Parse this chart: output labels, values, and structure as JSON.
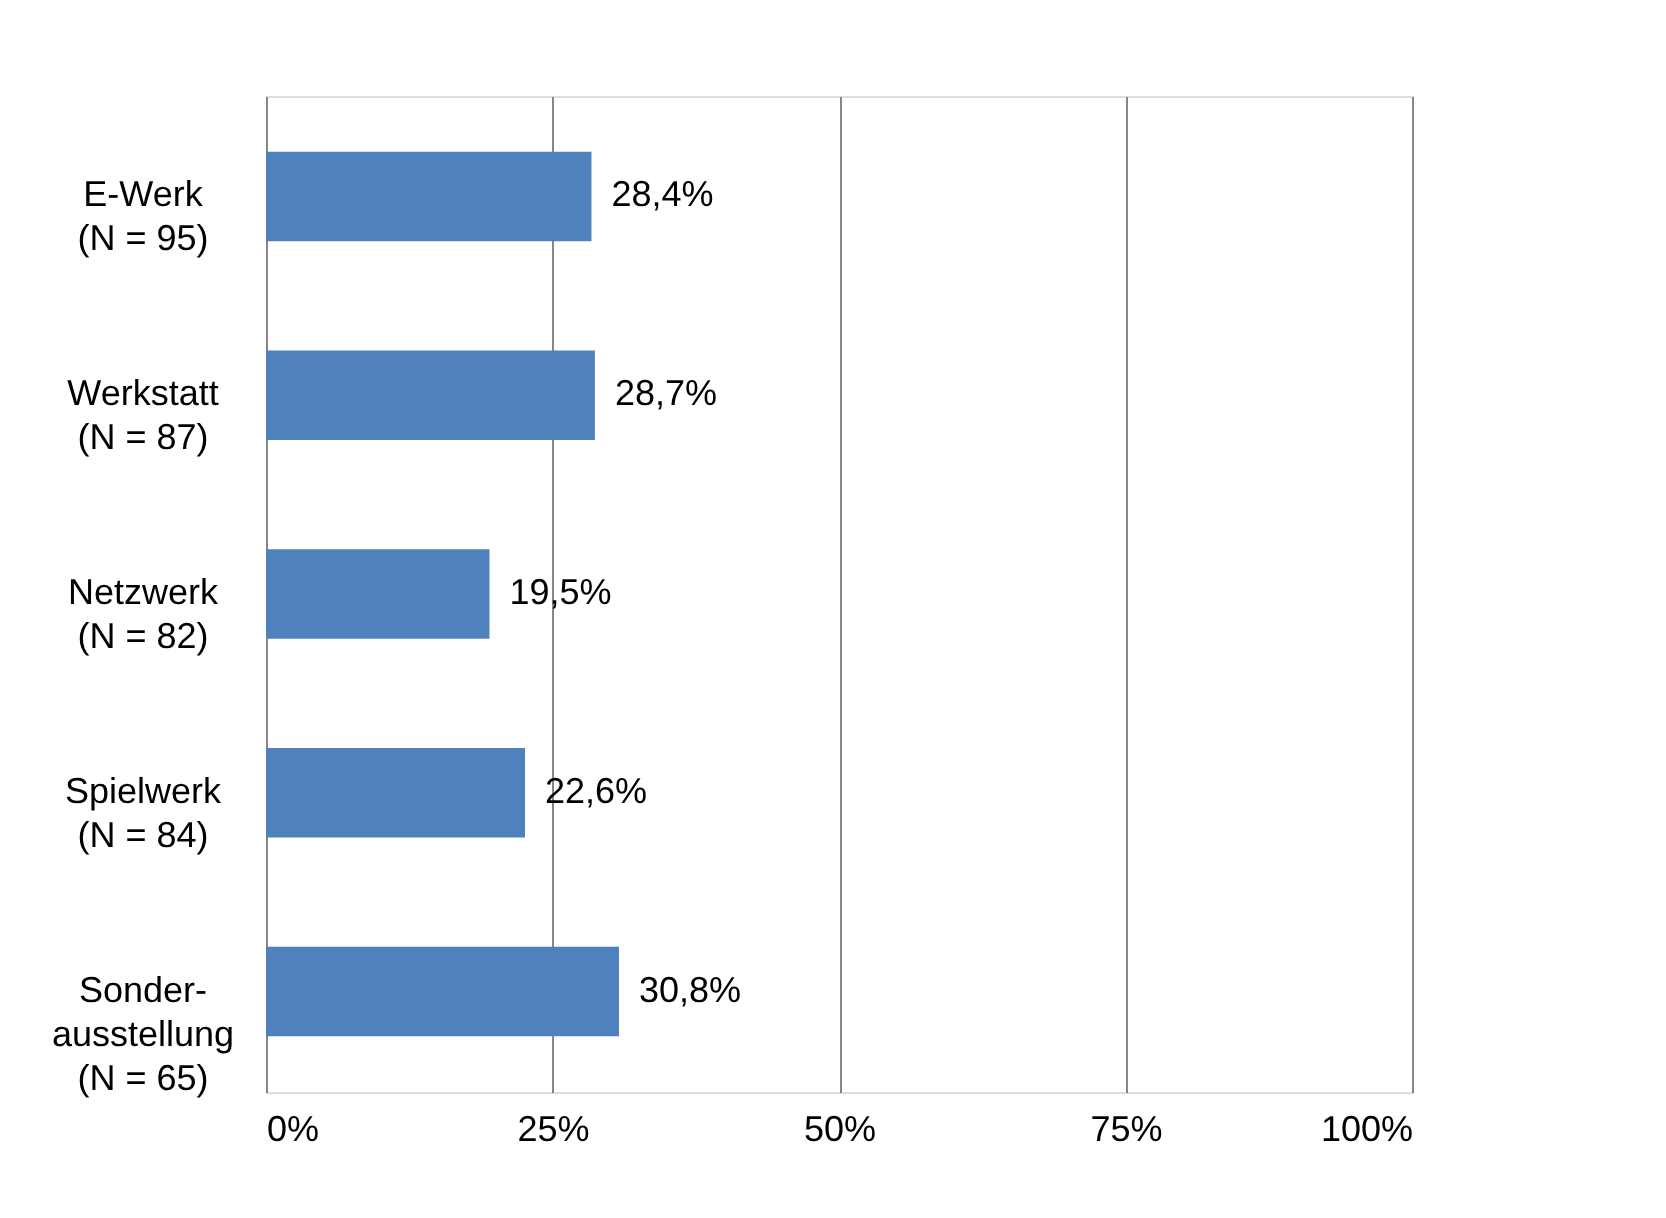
{
  "chart_data": {
    "type": "bar",
    "orientation": "horizontal",
    "categories": [
      "E-Werk\n(N = 95)",
      "Werkstatt\n(N = 87)",
      "Netzwerk\n(N = 82)",
      "Spielwerk\n(N = 84)",
      "Sonder-\nausstellung\n(N = 65)"
    ],
    "values": [
      28.4,
      28.7,
      19.5,
      22.6,
      30.8
    ],
    "value_labels": [
      "28,4%",
      "28,7%",
      "19,5%",
      "22,6%",
      "30,8%"
    ],
    "color": "#4f81bd",
    "xlim": [
      0,
      100
    ],
    "xticks": [
      {
        "value": 0,
        "label": "0%"
      },
      {
        "value": 25,
        "label": "25%"
      },
      {
        "value": 50,
        "label": "50%"
      },
      {
        "value": 75,
        "label": "75%"
      },
      {
        "value": 100,
        "label": "100%"
      }
    ],
    "grid": "x"
  }
}
